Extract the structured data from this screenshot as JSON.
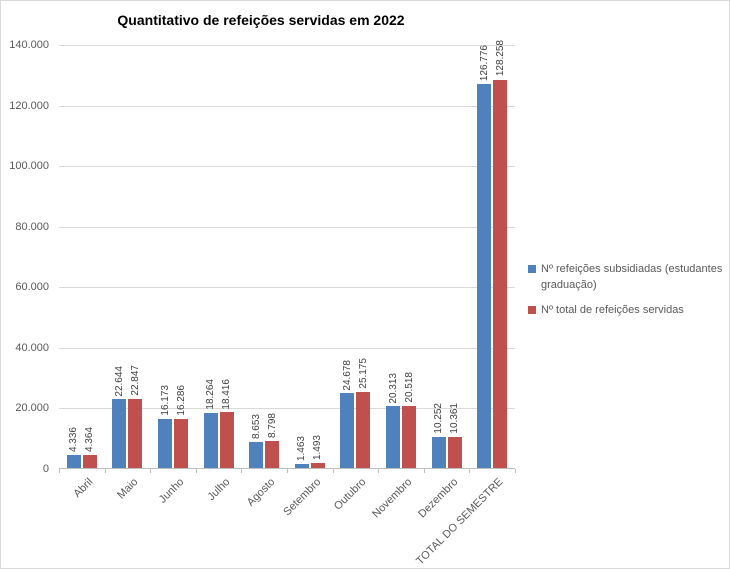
{
  "chart_data": {
    "type": "bar",
    "title": "Quantitativo de refeições servidas em 2022",
    "categories": [
      "Abril",
      "Maio",
      "Junho",
      "Julho",
      "Agosto",
      "Setembro",
      "Outubro",
      "Novembro",
      "Dezembro",
      "TOTAL DO SEMESTRE"
    ],
    "series": [
      {
        "name": "Nº refeições subsidiadas (estudantes graduação)",
        "color": "#4F81BD",
        "values": [
          4336,
          22644,
          16173,
          18264,
          8653,
          1463,
          24678,
          20313,
          10252,
          126776
        ],
        "labels": [
          "4.336",
          "22.644",
          "16.173",
          "18.264",
          "8.653",
          "1.463",
          "24.678",
          "20.313",
          "10.252",
          "126.776"
        ]
      },
      {
        "name": "Nº total de refeições servidas",
        "color": "#C0504D",
        "values": [
          4364,
          22847,
          16286,
          18416,
          8798,
          1493,
          25175,
          20518,
          10361,
          128258
        ],
        "labels": [
          "4.364",
          "22.847",
          "16.286",
          "18.416",
          "8.798",
          "1.493",
          "25.175",
          "20.518",
          "10.361",
          "128.258"
        ]
      }
    ],
    "ylim": [
      0,
      140000
    ],
    "ytick_step": 20000,
    "ytick_labels": [
      "0",
      "20.000",
      "40.000",
      "60.000",
      "80.000",
      "100.000",
      "120.000",
      "140.000"
    ],
    "grid": true,
    "legend_position": "right",
    "colors": {
      "gridline": "#d9d9d9",
      "axis_line": "#bfbfbf",
      "axis_text": "#595959",
      "data_label_text": "#404040",
      "title_text": "#000000"
    }
  }
}
